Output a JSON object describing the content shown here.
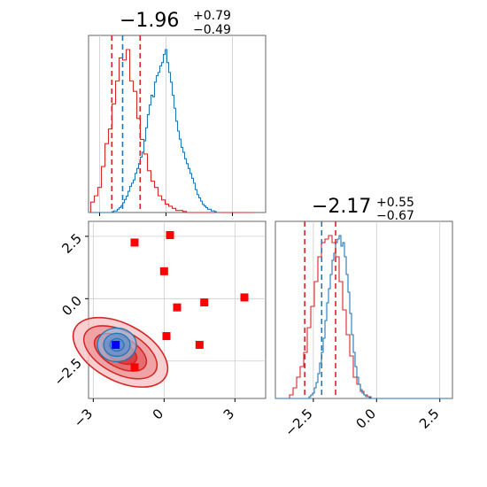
{
  "chart_data": {
    "type": "corner",
    "panels": [
      {
        "kind": "histogram",
        "title": {
          "value": "−1.96",
          "plus": "+0.79",
          "minus": "−0.49"
        },
        "xlim": [
          -3.5,
          4.5
        ],
        "x_ticks": [
          -3,
          0,
          3
        ],
        "x_ticklabels_shown": false,
        "grid": true,
        "series": [
          {
            "color": "#1f77b4",
            "lines_at": [
              -1.96
            ],
            "style": "dashed"
          },
          {
            "color": "#d62728",
            "lines_at": [
              -2.45,
              -1.17
            ],
            "style": "dashed"
          }
        ],
        "blue_hist": {
          "edges_from": -3.4,
          "bin_width": 0.08,
          "values": [
            0,
            0,
            0,
            0,
            0,
            0,
            0,
            0,
            0,
            0,
            0,
            0,
            0.5,
            1,
            1,
            2,
            3,
            4,
            6,
            8,
            10,
            13,
            16,
            18,
            20,
            24,
            27,
            30,
            34,
            37,
            44,
            52,
            60,
            66,
            72,
            71,
            80,
            84,
            86,
            90,
            92,
            97,
            100,
            92,
            86,
            80,
            72,
            64,
            56,
            50,
            45,
            40,
            37,
            33,
            30,
            27,
            24,
            21,
            18,
            14,
            11,
            9,
            7,
            5,
            4,
            3,
            2,
            2,
            1,
            1,
            0.5,
            0
          ]
        },
        "red_hist": {
          "edges_from": -3.4,
          "bin_width": 0.16,
          "values": [
            5,
            8,
            12,
            22,
            33,
            40,
            52,
            63,
            74,
            73,
            78,
            63,
            58,
            45,
            35,
            28,
            20,
            15,
            12,
            8,
            6,
            4,
            3,
            2,
            1,
            1,
            0.5,
            0,
            0,
            0,
            0,
            0,
            0,
            0,
            0,
            0,
            0,
            0,
            0,
            0,
            0,
            0,
            0,
            0,
            0,
            0
          ]
        }
      },
      {
        "kind": "2d-scatter-contour",
        "xlim": [
          -3.2,
          4.3
        ],
        "ylim": [
          -4.0,
          3.1
        ],
        "x_ticks": [
          -3,
          0,
          3
        ],
        "x_ticklabels": [
          "−3",
          "0",
          "3"
        ],
        "y_ticks": [
          -2.5,
          0.0,
          2.5
        ],
        "y_ticklabels": [
          "−2.5",
          "0.0",
          "2.5"
        ],
        "grid": true,
        "red_squares": [
          [
            -1.25,
            2.25
          ],
          [
            0.25,
            2.55
          ],
          [
            0.0,
            1.1
          ],
          [
            0.55,
            -0.35
          ],
          [
            1.7,
            -0.15
          ],
          [
            3.4,
            0.05
          ],
          [
            0.1,
            -1.5
          ],
          [
            1.5,
            -1.85
          ],
          [
            -1.25,
            -2.75
          ]
        ],
        "blue_squares": [
          [
            -2.05,
            -1.85
          ]
        ],
        "red_contours": {
          "center": [
            -1.85,
            -2.15
          ],
          "levels": [
            1,
            2,
            3,
            4
          ]
        },
        "blue_contours": {
          "center": [
            -2.0,
            -1.85
          ],
          "levels": [
            1,
            2,
            3
          ]
        }
      },
      {
        "kind": "histogram",
        "title": {
          "value": "−2.17",
          "plus": "+0.55",
          "minus": "−0.67"
        },
        "xlim": [
          -4.0,
          3.0
        ],
        "x_ticks": [
          -2.5,
          0.0,
          2.5
        ],
        "x_ticklabels": [
          "−2.5",
          "0.0",
          "2.5"
        ],
        "grid": true,
        "series": [
          {
            "color": "#1f77b4",
            "lines_at": [
              -2.17
            ],
            "style": "dashed"
          },
          {
            "color": "#d62728",
            "lines_at": [
              -2.84,
              -1.62
            ],
            "style": "dashed"
          }
        ],
        "blue_hist": {
          "edges_from": -4.0,
          "bin_width": 0.07,
          "values": [
            0,
            0,
            0,
            0,
            0,
            0,
            0,
            0,
            0,
            0,
            0,
            0,
            0,
            0,
            0,
            0,
            0,
            0,
            0,
            1,
            2,
            3,
            6,
            9,
            14,
            20,
            26,
            34,
            44,
            54,
            62,
            70,
            78,
            82,
            88,
            90,
            92,
            86,
            88,
            80,
            70,
            60,
            48,
            36,
            26,
            18,
            12,
            8,
            5,
            3,
            2,
            1,
            1,
            0.5,
            0,
            0,
            0,
            0,
            0,
            0,
            0,
            0,
            0,
            0,
            0,
            0,
            0,
            0,
            0,
            0,
            0,
            0,
            0,
            0,
            0,
            0,
            0,
            0,
            0,
            0,
            0,
            0,
            0,
            0,
            0,
            0,
            0,
            0,
            0,
            0,
            0,
            0,
            0,
            0,
            0,
            0,
            0,
            0
          ]
        },
        "red_hist": {
          "edges_from": -4.0,
          "bin_width": 0.14,
          "values": [
            0,
            0,
            0,
            0,
            1,
            3,
            6,
            9,
            13,
            20,
            26,
            33,
            40,
            44,
            45,
            46,
            44,
            40,
            33,
            25,
            18,
            12,
            6,
            4,
            2,
            1,
            0.5,
            0,
            0,
            0,
            0,
            0,
            0,
            0,
            0,
            0,
            0,
            0,
            0,
            0,
            0,
            0,
            0,
            0,
            0,
            0,
            0,
            0,
            0
          ]
        }
      }
    ]
  }
}
